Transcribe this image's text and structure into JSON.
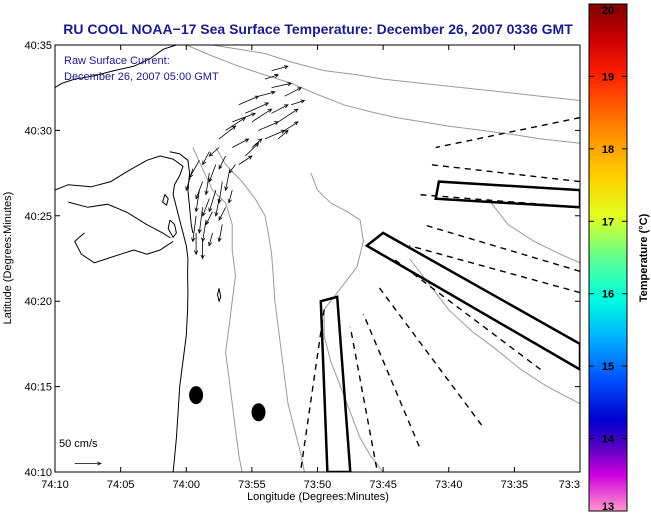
{
  "chart_data": {
    "type": "map",
    "title": "RU COOL  NOAA−17  Sea Surface Temperature:  December 26, 2007 0336 GMT",
    "legend_text": [
      "Raw Surface Current:",
      "December 26, 2007 05:00 GMT"
    ],
    "scale_label": "50 cm/s",
    "xlabel": "Longitude (Degrees:Minutes)",
    "ylabel": "Latitude (Degrees:Minutes)",
    "x_ticks": [
      "74:10",
      "74:05",
      "74:00",
      "73:55",
      "73:50",
      "73:45",
      "73:40",
      "73:35",
      "73:3"
    ],
    "x_tick_values": [
      -74.1667,
      -74.0833,
      -74.0,
      -73.9167,
      -73.8333,
      -73.75,
      -73.6667,
      -73.5833,
      -73.5
    ],
    "y_ticks": [
      "40:10",
      "40:15",
      "40:20",
      "40:25",
      "40:30",
      "40:35"
    ],
    "y_tick_values": [
      40.1667,
      40.25,
      40.3333,
      40.4167,
      40.5,
      40.5833
    ],
    "xlim": [
      -74.1667,
      -73.5
    ],
    "ylim": [
      40.1667,
      40.5833
    ],
    "colorbar": {
      "label": "Temperature (°C)",
      "ticks": [
        "20",
        "19",
        "18",
        "17",
        "16",
        "15",
        "14",
        "13"
      ],
      "range": [
        13,
        20
      ],
      "colormap": "jet with magenta/pink at low end"
    },
    "colors": {
      "title": "#1a1a8c",
      "legend": "#1a1a8c",
      "coast": "#000000",
      "contours": "#9a9a9a"
    },
    "coastline": [
      [
        -74.0125,
        40.5833
      ],
      [
        -74.0292,
        40.5792
      ],
      [
        -74.0458,
        40.57
      ],
      [
        -74.0667,
        40.5625
      ],
      [
        -74.0917,
        40.5583
      ],
      [
        -74.1167,
        40.5533
      ],
      [
        -74.1417,
        40.55
      ],
      [
        -74.1583,
        40.5458
      ],
      [
        -74.1667,
        40.5417
      ],
      [
        -74.1667,
        40.4417
      ],
      [
        -74.15,
        40.447
      ],
      [
        -74.1208,
        40.445
      ],
      [
        -74.0958,
        40.45
      ],
      [
        -74.075,
        40.46
      ],
      [
        -74.05,
        40.4708
      ],
      [
        -74.0333,
        40.475
      ],
      [
        -74.0167,
        40.472
      ],
      [
        -74.0042,
        40.465
      ],
      [
        -74.0083,
        40.456
      ],
      [
        -74.015,
        40.447
      ],
      [
        -74.0167,
        40.4375
      ],
      [
        -74.0125,
        40.425
      ],
      [
        -74.0083,
        40.4125
      ],
      [
        -74.0042,
        40.4
      ],
      [
        -74.0,
        40.3875
      ],
      [
        -73.9979,
        40.375
      ],
      [
        -73.9983,
        40.3583
      ],
      [
        -73.9979,
        40.3417
      ],
      [
        -73.9983,
        40.325
      ],
      [
        -74.0,
        40.3
      ],
      [
        -74.0042,
        40.275
      ],
      [
        -74.0083,
        40.25
      ],
      [
        -74.0104,
        40.225
      ],
      [
        -74.0125,
        40.2
      ],
      [
        -74.0146,
        40.1833
      ],
      [
        -74.0167,
        40.1667
      ]
    ],
    "sandy_hook": [
      [
        -74.0208,
        40.4792
      ],
      [
        -74.0083,
        40.4771
      ],
      [
        -73.9979,
        40.4708
      ],
      [
        -73.9958,
        40.4583
      ],
      [
        -73.9979,
        40.4417
      ],
      [
        -73.9958,
        40.425
      ],
      [
        -73.9937,
        40.4083
      ],
      [
        -73.9917,
        40.4
      ]
    ],
    "bay_shore": [
      [
        -74.15,
        40.43
      ],
      [
        -74.125,
        40.425
      ],
      [
        -74.1,
        40.428
      ],
      [
        -74.075,
        40.42
      ],
      [
        -74.05,
        40.408
      ],
      [
        -74.03,
        40.4
      ],
      [
        -74.02,
        40.395
      ]
    ],
    "inner_shore": [
      [
        -74.0167,
        40.3917
      ],
      [
        -74.0333,
        40.3833
      ],
      [
        -74.05,
        40.3792
      ],
      [
        -74.0667,
        40.3833
      ],
      [
        -74.0833,
        40.3792
      ],
      [
        -74.1,
        40.375
      ],
      [
        -74.1167,
        40.3708
      ],
      [
        -74.1333,
        40.3792
      ],
      [
        -74.1417,
        40.3917
      ],
      [
        -74.1292,
        40.4
      ]
    ],
    "islands": [
      [
        [
          -74.0208,
          40.4125
        ],
        [
          -74.015,
          40.4083
        ],
        [
          -74.0125,
          40.4
        ],
        [
          -74.0167,
          40.3958
        ],
        [
          -74.0229,
          40.4042
        ],
        [
          -74.0208,
          40.4125
        ]
      ],
      [
        [
          -74.0271,
          40.4375
        ],
        [
          -74.0229,
          40.4333
        ],
        [
          -74.025,
          40.4271
        ],
        [
          -74.03,
          40.43
        ],
        [
          -74.0271,
          40.4375
        ]
      ],
      [
        [
          -73.9583,
          40.3458
        ],
        [
          -73.9563,
          40.3375
        ],
        [
          -73.9583,
          40.3333
        ],
        [
          -73.9604,
          40.3396
        ],
        [
          -73.9583,
          40.3458
        ]
      ]
    ],
    "contours": [
      [
        [
          -74.0,
          40.5833
        ],
        [
          -73.9667,
          40.5725
        ],
        [
          -73.9333,
          40.5625
        ],
        [
          -73.9,
          40.554
        ],
        [
          -73.8667,
          40.546
        ],
        [
          -73.8333,
          40.535
        ],
        [
          -73.8,
          40.525
        ],
        [
          -73.7667,
          40.5183
        ],
        [
          -73.7333,
          40.5125
        ],
        [
          -73.7,
          40.5083
        ],
        [
          -73.6667,
          40.5042
        ],
        [
          -73.625,
          40.5
        ],
        [
          -73.5833,
          40.4958
        ],
        [
          -73.55,
          40.4917
        ],
        [
          -73.5,
          40.4875
        ]
      ],
      [
        [
          -73.9667,
          40.5833
        ],
        [
          -73.9333,
          40.5792
        ],
        [
          -73.9,
          40.575
        ],
        [
          -73.8667,
          40.5667
        ],
        [
          -73.825,
          40.5583
        ],
        [
          -73.7833,
          40.5542
        ],
        [
          -73.75,
          40.55
        ],
        [
          -73.7,
          40.5458
        ],
        [
          -73.65,
          40.5417
        ],
        [
          -73.6,
          40.5375
        ],
        [
          -73.55,
          40.5333
        ],
        [
          -73.5,
          40.5292
        ]
      ],
      [
        [
          -73.9625,
          40.4833
        ],
        [
          -73.95,
          40.4667
        ],
        [
          -73.9292,
          40.45
        ],
        [
          -73.9125,
          40.4333
        ],
        [
          -73.9,
          40.4167
        ],
        [
          -73.8958,
          40.4
        ],
        [
          -73.8917,
          40.3792
        ],
        [
          -73.8896,
          40.3583
        ],
        [
          -73.8875,
          40.3333
        ],
        [
          -73.8833,
          40.3083
        ],
        [
          -73.8792,
          40.2833
        ],
        [
          -73.875,
          40.2583
        ],
        [
          -73.8708,
          40.2333
        ],
        [
          -73.8625,
          40.2083
        ],
        [
          -73.8542,
          40.1833
        ],
        [
          -73.85,
          40.1667
        ]
      ],
      [
        [
          -73.8417,
          40.4583
        ],
        [
          -73.8333,
          40.4417
        ],
        [
          -73.8167,
          40.4292
        ],
        [
          -73.7958,
          40.4208
        ],
        [
          -73.7792,
          40.4125
        ],
        [
          -73.775,
          40.3917
        ],
        [
          -73.7833,
          40.3667
        ],
        [
          -73.8042,
          40.3458
        ],
        [
          -73.825,
          40.325
        ],
        [
          -73.825,
          40.3
        ],
        [
          -73.8167,
          40.275
        ],
        [
          -73.8042,
          40.25
        ],
        [
          -73.7917,
          40.225
        ],
        [
          -73.7792,
          40.2
        ],
        [
          -73.7667,
          40.1833
        ],
        [
          -73.75,
          40.1667
        ]
      ],
      [
        [
          -73.9917,
          40.4833
        ],
        [
          -73.9792,
          40.4625
        ],
        [
          -73.9667,
          40.4417
        ],
        [
          -73.95,
          40.4292
        ],
        [
          -73.9417,
          40.4083
        ],
        [
          -73.9417,
          40.3833
        ],
        [
          -73.9375,
          40.3583
        ],
        [
          -73.9417,
          40.3333
        ],
        [
          -73.9458,
          40.3083
        ],
        [
          -73.95,
          40.2833
        ],
        [
          -73.9458,
          40.2583
        ],
        [
          -73.9417,
          40.2333
        ],
        [
          -73.9375,
          40.2083
        ],
        [
          -73.9333,
          40.1833
        ],
        [
          -73.9292,
          40.1667
        ]
      ],
      [
        [
          -73.7167,
          40.375
        ],
        [
          -73.6917,
          40.35
        ],
        [
          -73.6667,
          40.325
        ],
        [
          -73.6375,
          40.3042
        ],
        [
          -73.6083,
          40.2875
        ],
        [
          -73.575,
          40.2667
        ],
        [
          -73.5417,
          40.25
        ],
        [
          -73.5,
          40.2333
        ]
      ],
      [
        [
          -73.6167,
          40.4333
        ],
        [
          -73.5917,
          40.4083
        ],
        [
          -73.5583,
          40.3917
        ],
        [
          -73.525,
          40.3792
        ],
        [
          -73.5,
          40.3708
        ]
      ]
    ],
    "current_vectors": [
      [
        -73.9333,
        40.525,
        0.025,
        0.0083
      ],
      [
        -73.925,
        40.5167,
        0.0292,
        0.01
      ],
      [
        -73.9167,
        40.5083,
        0.025,
        0.0125
      ],
      [
        -73.9083,
        40.5,
        0.025,
        0.0083
      ],
      [
        -73.9,
        40.4917,
        0.025,
        0.0083
      ],
      [
        -73.9083,
        40.5333,
        0.0208,
        0.0042
      ],
      [
        -73.8917,
        40.5167,
        0.0208,
        0.0083
      ],
      [
        -73.8833,
        40.5083,
        0.025,
        0.0125
      ],
      [
        -73.8917,
        40.5417,
        0.025,
        0.0042
      ],
      [
        -73.875,
        40.5333,
        0.0208,
        0.0083
      ],
      [
        -73.8667,
        40.525,
        0.0167,
        0.0042
      ],
      [
        -73.9417,
        40.5083,
        0.0292,
        0.0083
      ],
      [
        -73.95,
        40.5,
        0.025,
        0.0125
      ],
      [
        -73.9583,
        40.4917,
        0.0208,
        0.0125
      ],
      [
        -73.9417,
        40.4833,
        0.0208,
        0.0083
      ],
      [
        -73.925,
        40.475,
        0.0167,
        0.0125
      ],
      [
        -73.9333,
        40.4667,
        0.0167,
        0.0083
      ],
      [
        -73.8833,
        40.4917,
        0.0125,
        0.0083
      ],
      [
        -73.9167,
        40.4833,
        0.0125,
        0.0083
      ],
      [
        -73.8917,
        40.5583,
        0.0208,
        0.0042
      ],
      [
        -73.9,
        40.55,
        0.0167,
        0.0042
      ],
      [
        -73.875,
        40.5,
        0.0167,
        0.0083
      ],
      [
        -73.9625,
        40.4667,
        -0.0083,
        -0.0167
      ],
      [
        -73.9708,
        40.4583,
        -0.0042,
        -0.0208
      ],
      [
        -73.9792,
        40.45,
        -0.0083,
        -0.0167
      ],
      [
        -73.9542,
        40.45,
        -0.0042,
        -0.0208
      ],
      [
        -73.9625,
        40.4417,
        -0.0083,
        -0.0208
      ],
      [
        -73.9708,
        40.4333,
        -0.0083,
        -0.0167
      ],
      [
        -73.9792,
        40.425,
        -0.0042,
        -0.025
      ],
      [
        -73.9583,
        40.4333,
        -0.0042,
        -0.0167
      ],
      [
        -73.95,
        40.425,
        -0.0083,
        -0.0125
      ],
      [
        -73.9458,
        40.4583,
        -0.0042,
        -0.0167
      ],
      [
        -73.975,
        40.4125,
        -0.0042,
        -0.0208
      ],
      [
        -73.9667,
        40.4208,
        -0.0083,
        -0.0125
      ],
      [
        -73.9875,
        40.4167,
        -0.0042,
        -0.025
      ],
      [
        -73.9833,
        40.4417,
        -0.0042,
        -0.0208
      ],
      [
        -73.9917,
        40.4625,
        -0.0083,
        -0.0208
      ],
      [
        -73.9833,
        40.4708,
        -0.0125,
        -0.0167
      ],
      [
        -73.95,
        40.475,
        -0.0083,
        -0.0125
      ],
      [
        -73.9375,
        40.4667,
        -0.0083,
        -0.0083
      ],
      [
        -73.9583,
        40.4833,
        -0.0125,
        -0.0083
      ],
      [
        -73.9708,
        40.4792,
        -0.0083,
        -0.0125
      ],
      [
        -73.9417,
        40.4417,
        -0.0042,
        -0.0125
      ],
      [
        -73.9542,
        40.4083,
        -0.0042,
        -0.0167
      ],
      [
        -73.9875,
        40.4,
        0.0,
        -0.0208
      ],
      [
        -73.9792,
        40.3917,
        0.0,
        -0.0167
      ],
      [
        -73.9667,
        40.4,
        -0.0042,
        -0.0125
      ]
    ],
    "scale_vector": [
      -74.1417,
      40.175,
      0.0333,
      0.0
    ],
    "markers": [
      [
        -73.9875,
        40.2417
      ],
      [
        -73.9083,
        40.225
      ]
    ],
    "thick_polygons": [
      [
        [
          -73.8208,
          40.1667
        ],
        [
          -73.8292,
          40.3333
        ],
        [
          -73.8083,
          40.3375
        ],
        [
          -73.7917,
          40.1667
        ]
      ],
      [
        [
          -73.5,
          40.2667
        ],
        [
          -73.7708,
          40.3875
        ],
        [
          -73.75,
          40.4
        ],
        [
          -73.5,
          40.2917
        ]
      ],
      [
        [
          -73.5,
          40.4417
        ],
        [
          -73.6792,
          40.45
        ],
        [
          -73.6833,
          40.4333
        ],
        [
          -73.5,
          40.425
        ]
      ]
    ],
    "dashed_lines": [
      [
        [
          -73.8542,
          40.1708
        ],
        [
          -73.825,
          40.325
        ]
      ],
      [
        [
          -73.7583,
          40.1708
        ],
        [
          -73.7917,
          40.3083
        ]
      ],
      [
        [
          -73.7042,
          40.1917
        ],
        [
          -73.775,
          40.3208
        ]
      ],
      [
        [
          -73.625,
          40.2125
        ],
        [
          -73.7583,
          40.35
        ]
      ],
      [
        [
          -73.55,
          40.2667
        ],
        [
          -73.7375,
          40.375
        ]
      ],
      [
        [
          -73.5,
          40.3417
        ],
        [
          -73.7167,
          40.3875
        ]
      ],
      [
        [
          -73.5,
          40.3625
        ],
        [
          -73.7,
          40.4083
        ]
      ],
      [
        [
          -73.5,
          40.425
        ],
        [
          -73.7083,
          40.4375
        ]
      ],
      [
        [
          -73.5,
          40.45
        ],
        [
          -73.6917,
          40.4667
        ]
      ],
      [
        [
          -73.5,
          40.5125
        ],
        [
          -73.6833,
          40.4833
        ]
      ]
    ]
  }
}
